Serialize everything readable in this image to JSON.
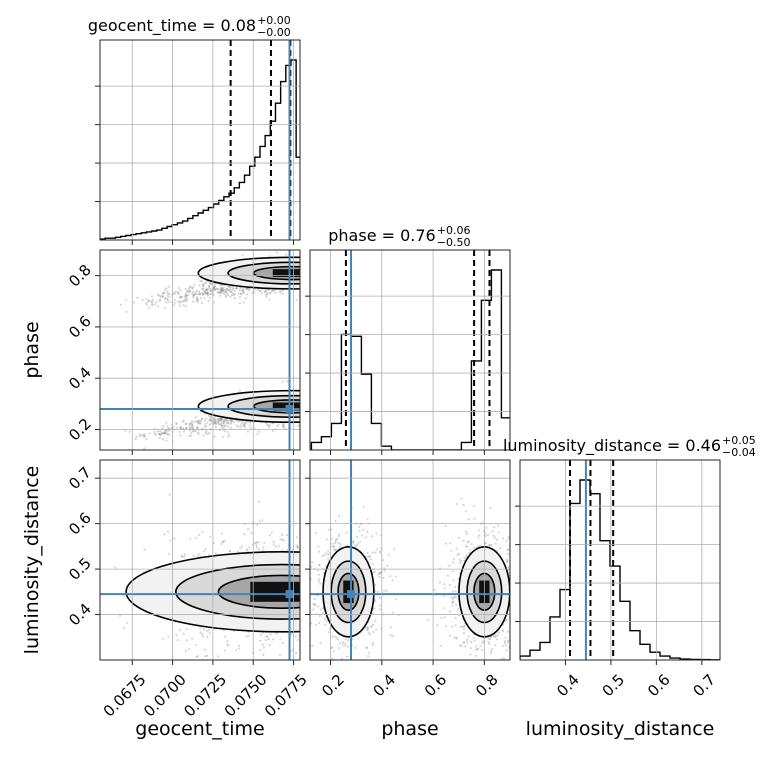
{
  "chart_data": {
    "type": "corner",
    "parameters": [
      "geocent_time",
      "phase",
      "luminosity_distance"
    ],
    "truth_color": "#4682b4",
    "truths": {
      "geocent_time": 0.07725,
      "phase": 0.28,
      "luminosity_distance": 0.445
    },
    "ranges": {
      "geocent_time": [
        0.0655,
        0.0779
      ],
      "phase": [
        0.12,
        0.9
      ],
      "luminosity_distance": [
        0.3,
        0.74
      ]
    },
    "ticks": {
      "geocent_time": [
        "0.0675",
        "0.0700",
        "0.0725",
        "0.0750",
        "0.0775"
      ],
      "phase": [
        "0.2",
        "0.4",
        "0.6",
        "0.8"
      ],
      "luminosity_distance": [
        "0.4",
        "0.5",
        "0.6",
        "0.7"
      ]
    },
    "titles": [
      {
        "param": "geocent_time",
        "text": "geocent_time = 0.08",
        "plus": "+0.00",
        "minus": "−0.00"
      },
      {
        "param": "phase",
        "text": "phase = 0.76",
        "plus": "+0.06",
        "minus": "−0.50"
      },
      {
        "param": "luminosity_distance",
        "text": "luminosity_distance = 0.46",
        "plus": "+0.05",
        "minus": "−0.04"
      }
    ],
    "quantiles": {
      "geocent_time": [
        0.0736,
        0.0761,
        0.0773
      ],
      "phase": [
        0.26,
        0.76,
        0.82
      ],
      "luminosity_distance": [
        0.41,
        0.455,
        0.505
      ]
    },
    "histograms": {
      "geocent_time": {
        "x": [
          0.06566,
          0.06598,
          0.0663,
          0.06662,
          0.06694,
          0.06726,
          0.06758,
          0.0679,
          0.06822,
          0.06854,
          0.06886,
          0.06918,
          0.0695,
          0.06982,
          0.07014,
          0.07046,
          0.07078,
          0.0711,
          0.07142,
          0.07174,
          0.07206,
          0.07238,
          0.0727,
          0.07302,
          0.07334,
          0.07366,
          0.07398,
          0.0743,
          0.07462,
          0.07494,
          0.07526,
          0.07558,
          0.0759,
          0.07622,
          0.07654,
          0.07686,
          0.07718,
          0.0775,
          0.07782
        ],
        "counts": [
          0.005,
          0.01,
          0.01,
          0.015,
          0.02,
          0.025,
          0.03,
          0.035,
          0.04,
          0.045,
          0.05,
          0.055,
          0.065,
          0.075,
          0.085,
          0.095,
          0.105,
          0.12,
          0.135,
          0.15,
          0.165,
          0.18,
          0.2,
          0.22,
          0.24,
          0.26,
          0.29,
          0.32,
          0.36,
          0.41,
          0.46,
          0.52,
          0.58,
          0.66,
          0.76,
          0.88,
          0.97,
          1.0,
          0.46
        ]
      },
      "phase": {
        "x": [
          0.145,
          0.184,
          0.223,
          0.262,
          0.301,
          0.34,
          0.379,
          0.418,
          0.457,
          0.496,
          0.535,
          0.574,
          0.613,
          0.652,
          0.691,
          0.73,
          0.769,
          0.808,
          0.847,
          0.886
        ],
        "counts": [
          0.04,
          0.07,
          0.14,
          0.61,
          0.6,
          0.4,
          0.14,
          0.02,
          0.0,
          0.0,
          0.0,
          0.0,
          0.0,
          0.0,
          0.0,
          0.04,
          0.47,
          0.79,
          0.95,
          0.17
        ]
      },
      "luminosity_distance": {
        "x": [
          0.311,
          0.333,
          0.355,
          0.377,
          0.399,
          0.421,
          0.443,
          0.465,
          0.487,
          0.509,
          0.531,
          0.553,
          0.575,
          0.597,
          0.619,
          0.641,
          0.663,
          0.685,
          0.707,
          0.729
        ],
        "counts": [
          0.02,
          0.05,
          0.09,
          0.22,
          0.36,
          0.8,
          0.92,
          0.85,
          0.61,
          0.48,
          0.3,
          0.15,
          0.08,
          0.04,
          0.02,
          0.01,
          0.005,
          0.003,
          0.002,
          0.001
        ]
      }
    },
    "posterior_modes": {
      "geocent_time-phase": [
        {
          "x": 0.0774,
          "y": 0.81,
          "sx": 0.0012,
          "sy": 0.035,
          "weight": 0.55
        },
        {
          "x": 0.0774,
          "y": 0.29,
          "sx": 0.0012,
          "sy": 0.035,
          "weight": 0.45
        }
      ],
      "geocent_time-luminosity_distance": [
        {
          "x": 0.0768,
          "y": 0.45,
          "sx": 0.0022,
          "sy": 0.04,
          "weight": 1.0
        }
      ],
      "phase-luminosity_distance": [
        {
          "x": 0.27,
          "y": 0.45,
          "sx": 0.045,
          "sy": 0.045,
          "weight": 0.45
        },
        {
          "x": 0.8,
          "y": 0.45,
          "sx": 0.045,
          "sy": 0.045,
          "weight": 0.55
        }
      ]
    },
    "grid": true,
    "histogram_style": "step",
    "quantile_style": "dashed",
    "contour_levels": 3
  }
}
